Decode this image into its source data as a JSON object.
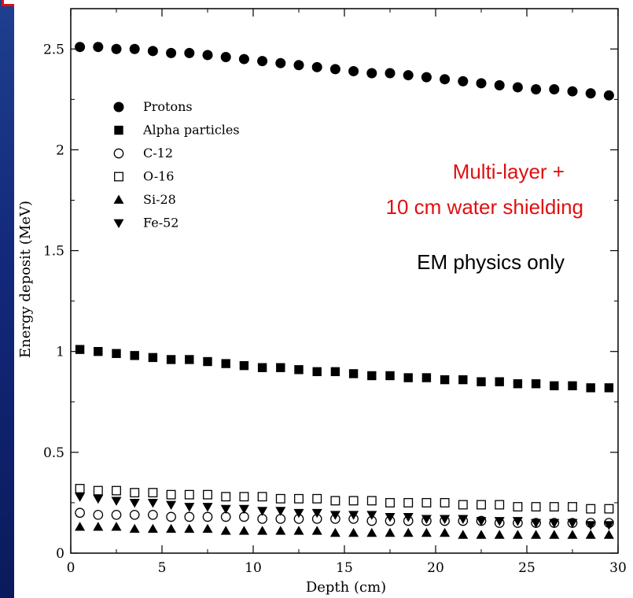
{
  "chart_data": {
    "type": "scatter",
    "xlabel": "Depth (cm)",
    "ylabel": "Energy deposit (MeV)",
    "xlim": [
      0,
      30
    ],
    "ylim": [
      0,
      2.7
    ],
    "xticks": [
      "0",
      "5",
      "10",
      "15",
      "20",
      "25",
      "30"
    ],
    "yticks": [
      "0",
      "0.5",
      "1",
      "1.5",
      "2",
      "2.5"
    ],
    "grid": false,
    "legend_position": "top-left",
    "annotations": [
      "Multi-layer +",
      "10 cm water shielding",
      "EM physics only"
    ],
    "annotation_colors": [
      "#e01010",
      "#e01010",
      "#000000"
    ],
    "x": [
      0.5,
      1.5,
      2.5,
      3.5,
      4.5,
      5.5,
      6.5,
      7.5,
      8.5,
      9.5,
      10.5,
      11.5,
      12.5,
      13.5,
      14.5,
      15.5,
      16.5,
      17.5,
      18.5,
      19.5,
      20.5,
      21.5,
      22.5,
      23.5,
      24.5,
      25.5,
      26.5,
      27.5,
      28.5,
      29.5
    ],
    "series": [
      {
        "name": "Protons",
        "marker": "circle-filled",
        "values": [
          2.51,
          2.51,
          2.5,
          2.5,
          2.49,
          2.48,
          2.48,
          2.47,
          2.46,
          2.45,
          2.44,
          2.43,
          2.42,
          2.41,
          2.4,
          2.39,
          2.38,
          2.38,
          2.37,
          2.36,
          2.35,
          2.34,
          2.33,
          2.32,
          2.31,
          2.3,
          2.3,
          2.29,
          2.28,
          2.27
        ]
      },
      {
        "name": "Alpha particles",
        "marker": "square-filled",
        "values": [
          1.01,
          1.0,
          0.99,
          0.98,
          0.97,
          0.96,
          0.96,
          0.95,
          0.94,
          0.93,
          0.92,
          0.92,
          0.91,
          0.9,
          0.9,
          0.89,
          0.88,
          0.88,
          0.87,
          0.87,
          0.86,
          0.86,
          0.85,
          0.85,
          0.84,
          0.84,
          0.83,
          0.83,
          0.82,
          0.82
        ]
      },
      {
        "name": "C-12",
        "marker": "circle-open",
        "values": [
          0.2,
          0.19,
          0.19,
          0.19,
          0.19,
          0.18,
          0.18,
          0.18,
          0.18,
          0.18,
          0.17,
          0.17,
          0.17,
          0.17,
          0.17,
          0.17,
          0.16,
          0.16,
          0.16,
          0.16,
          0.16,
          0.16,
          0.16,
          0.15,
          0.15,
          0.15,
          0.15,
          0.15,
          0.15,
          0.15
        ]
      },
      {
        "name": "O-16",
        "marker": "square-open",
        "values": [
          0.32,
          0.31,
          0.31,
          0.3,
          0.3,
          0.29,
          0.29,
          0.29,
          0.28,
          0.28,
          0.28,
          0.27,
          0.27,
          0.27,
          0.26,
          0.26,
          0.26,
          0.25,
          0.25,
          0.25,
          0.25,
          0.24,
          0.24,
          0.24,
          0.23,
          0.23,
          0.23,
          0.23,
          0.22,
          0.22
        ]
      },
      {
        "name": "Si-28",
        "marker": "triangle-up-filled",
        "values": [
          0.13,
          0.13,
          0.13,
          0.12,
          0.12,
          0.12,
          0.12,
          0.12,
          0.11,
          0.11,
          0.11,
          0.11,
          0.11,
          0.11,
          0.1,
          0.1,
          0.1,
          0.1,
          0.1,
          0.1,
          0.1,
          0.09,
          0.09,
          0.09,
          0.09,
          0.09,
          0.09,
          0.09,
          0.09,
          0.09
        ]
      },
      {
        "name": "Fe-52",
        "marker": "triangle-down-filled",
        "values": [
          0.28,
          0.27,
          0.26,
          0.25,
          0.25,
          0.24,
          0.23,
          0.23,
          0.22,
          0.22,
          0.21,
          0.21,
          0.2,
          0.2,
          0.19,
          0.19,
          0.19,
          0.18,
          0.18,
          0.17,
          0.17,
          0.17,
          0.16,
          0.16,
          0.16,
          0.15,
          0.15,
          0.15,
          0.14,
          0.14
        ]
      }
    ]
  },
  "colors": {
    "background": "#12287a",
    "annotation_red": "#e01010",
    "marker": "#000000"
  }
}
